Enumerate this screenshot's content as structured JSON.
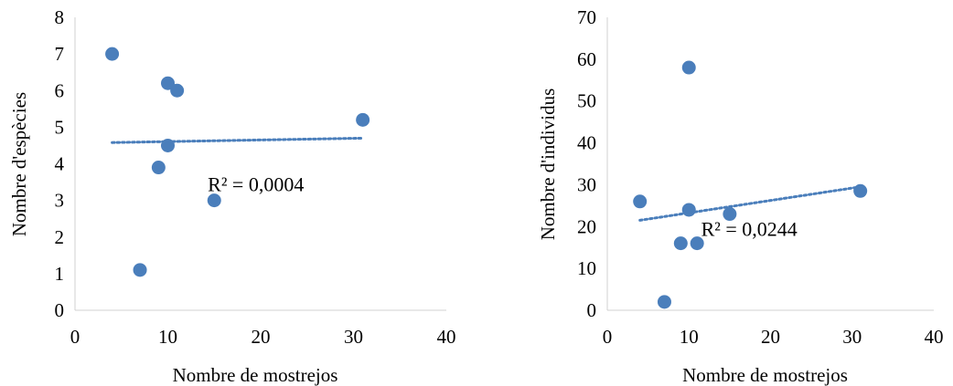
{
  "chart_data": [
    {
      "type": "scatter",
      "title": "",
      "xlabel": "Nombre de mostrejos",
      "ylabel": "Nombre d'espècies",
      "xlim": [
        0,
        40
      ],
      "ylim": [
        0,
        8
      ],
      "xticks": [
        "0",
        "10",
        "20",
        "30",
        "40"
      ],
      "yticks": [
        "0",
        "1",
        "2",
        "3",
        "4",
        "5",
        "6",
        "7",
        "8"
      ],
      "grid": false,
      "legend": "none",
      "marker_color": "#4a7ebb",
      "trendline_color": "#4a7ebb",
      "points": [
        {
          "x": 4,
          "y": 7
        },
        {
          "x": 7,
          "y": 1.1
        },
        {
          "x": 9,
          "y": 3.9
        },
        {
          "x": 10,
          "y": 6.2
        },
        {
          "x": 10,
          "y": 4.5
        },
        {
          "x": 11,
          "y": 6
        },
        {
          "x": 15,
          "y": 3
        },
        {
          "x": 31,
          "y": 5.2
        }
      ],
      "trendline": {
        "style": "dotted",
        "x": [
          4,
          31
        ],
        "y": [
          4.58,
          4.7
        ]
      },
      "annotation": "R² = 0,0004"
    },
    {
      "type": "scatter",
      "title": "",
      "xlabel": "Nombre de mostrejos",
      "ylabel": "Nombre d'individus",
      "xlim": [
        0,
        40
      ],
      "ylim": [
        0,
        70
      ],
      "xticks": [
        "0",
        "10",
        "20",
        "30",
        "40"
      ],
      "yticks": [
        "0",
        "10",
        "20",
        "30",
        "40",
        "50",
        "60",
        "70"
      ],
      "grid": false,
      "legend": "none",
      "marker_color": "#4a7ebb",
      "trendline_color": "#4a7ebb",
      "points": [
        {
          "x": 4,
          "y": 26
        },
        {
          "x": 7,
          "y": 2
        },
        {
          "x": 9,
          "y": 16
        },
        {
          "x": 10,
          "y": 58
        },
        {
          "x": 10,
          "y": 24
        },
        {
          "x": 11,
          "y": 16
        },
        {
          "x": 15,
          "y": 23
        },
        {
          "x": 31,
          "y": 28.5
        }
      ],
      "trendline": {
        "style": "dotted",
        "x": [
          4,
          31
        ],
        "y": [
          21.5,
          29.5
        ]
      },
      "annotation": "R² = 0,0244"
    }
  ]
}
